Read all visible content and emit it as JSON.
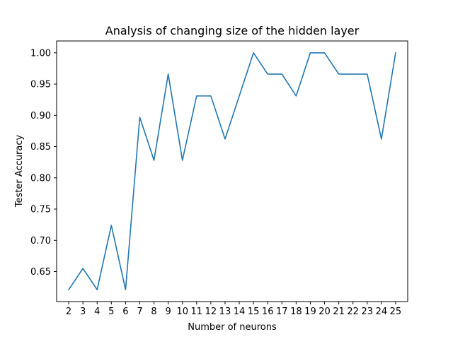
{
  "chart_data": {
    "type": "line",
    "title": "Analysis of changing size of the hidden layer",
    "xlabel": "Number of neurons",
    "ylabel": "Tester Accuracy",
    "x": [
      2,
      3,
      4,
      5,
      6,
      7,
      8,
      9,
      10,
      11,
      12,
      13,
      14,
      15,
      16,
      17,
      18,
      19,
      20,
      21,
      22,
      23,
      24,
      25
    ],
    "series": [
      {
        "values": [
          0.621,
          0.655,
          0.621,
          0.724,
          0.621,
          0.897,
          0.828,
          0.966,
          0.828,
          0.931,
          0.931,
          0.862,
          0.931,
          1.0,
          0.966,
          0.966,
          0.931,
          1.0,
          1.0,
          0.966,
          0.966,
          0.966,
          0.862,
          1.0
        ],
        "color": "#1f77b4"
      }
    ],
    "xlim": [
      1.15,
      25.85
    ],
    "ylim": [
      0.602,
      1.019
    ],
    "xticks": [
      2,
      3,
      4,
      5,
      6,
      7,
      8,
      9,
      10,
      11,
      12,
      13,
      14,
      15,
      16,
      17,
      18,
      19,
      20,
      21,
      22,
      23,
      24,
      25
    ],
    "yticks": [
      0.65,
      0.7,
      0.75,
      0.8,
      0.85,
      0.9,
      0.95,
      1.0
    ],
    "ytick_labels": [
      "0.65",
      "0.70",
      "0.75",
      "0.80",
      "0.85",
      "0.90",
      "0.95",
      "1.00"
    ],
    "grid": false,
    "legend": "none"
  }
}
